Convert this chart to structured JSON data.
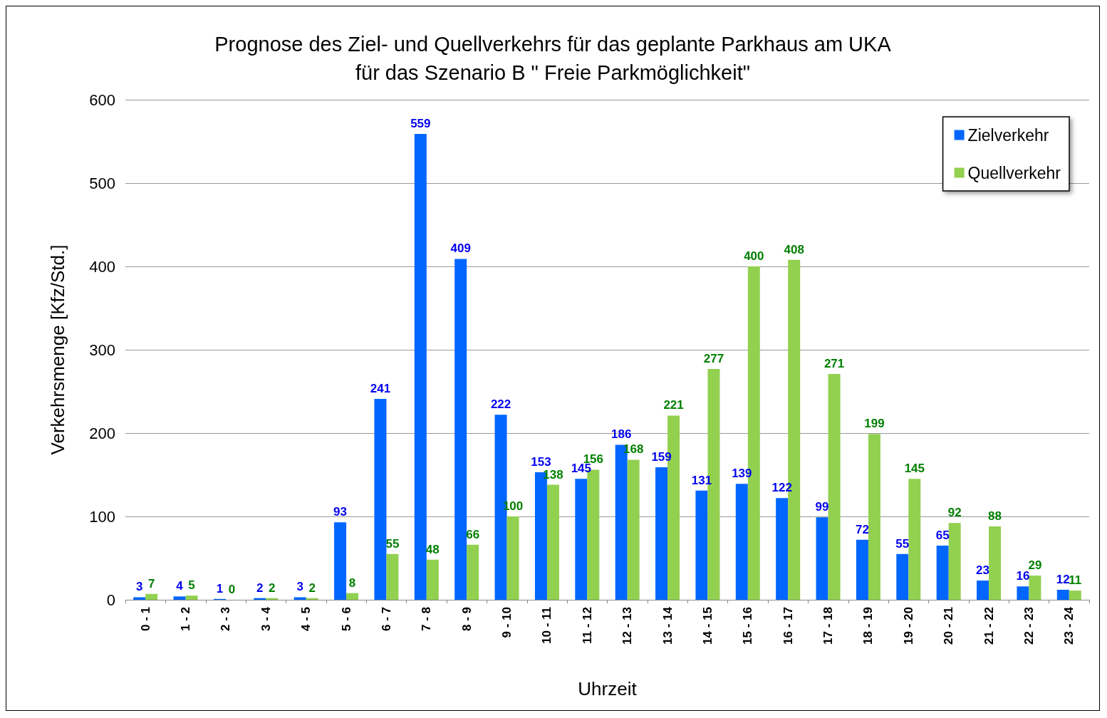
{
  "chart_data": {
    "type": "bar",
    "title": "Prognose des Ziel- und Quellverkehrs für das geplante Parkhaus am UKA\nfür das Szenario B \" Freie Parkmöglichkeit\"",
    "xlabel": "Uhrzeit",
    "ylabel": "Verkehrsmenge [Kfz/Std.]",
    "categories": [
      "0 - 1",
      "1 - 2",
      "2 - 3",
      "3 - 4",
      "4 - 5",
      "5 - 6",
      "6 - 7",
      "7 - 8",
      "8 - 9",
      "9 - 10",
      "10 - 11",
      "11 - 12",
      "12 - 13",
      "13 - 14",
      "14 - 15",
      "15 - 16",
      "16 - 17",
      "17 - 18",
      "18 - 19",
      "19 - 20",
      "20 - 21",
      "21 - 22",
      "22 - 23",
      "23 - 24"
    ],
    "series": [
      {
        "name": "Zielverkehr",
        "color": "#0066ff",
        "values": [
          3,
          4,
          1,
          2,
          3,
          93,
          241,
          559,
          409,
          222,
          153,
          145,
          186,
          159,
          131,
          139,
          122,
          99,
          72,
          55,
          65,
          23,
          16,
          12
        ]
      },
      {
        "name": "Quellverkehr",
        "color": "#92d050",
        "values": [
          7,
          5,
          0,
          2,
          2,
          8,
          55,
          48,
          66,
          100,
          138,
          156,
          168,
          221,
          277,
          400,
          408,
          271,
          199,
          145,
          92,
          88,
          29,
          11
        ]
      }
    ],
    "ylim": [
      0,
      600
    ],
    "yticks": [
      0,
      100,
      200,
      300,
      400,
      500,
      600
    ],
    "grid": "y",
    "legend": "top right",
    "data_labels": true
  }
}
